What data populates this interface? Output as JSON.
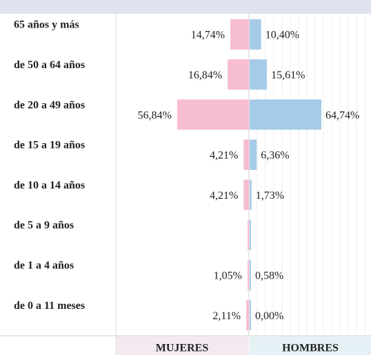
{
  "chart_data": {
    "type": "pyramid",
    "categories": [
      "65 años y más",
      "de 50 a 64 años",
      "de 20 a 49 años",
      "de 15 a 19 años",
      "de 10 a 14 años",
      "de 5 a 9 años",
      "de 1 a 4 años",
      "de 0 a 11 meses"
    ],
    "series": [
      {
        "name": "MUJERES",
        "color": "#f7bdd1",
        "values": [
          14.74,
          16.84,
          56.84,
          4.21,
          4.21,
          0,
          1.05,
          2.11
        ],
        "value_labels": [
          "14,74%",
          "16,84%",
          "56,84%",
          "4,21%",
          "4,21%",
          null,
          "1,05%",
          "2,11%"
        ]
      },
      {
        "name": "HOMBRES",
        "color": "#a5cbe8",
        "values": [
          10.4,
          15.61,
          64.74,
          6.36,
          1.73,
          0,
          0.58,
          0
        ],
        "value_labels": [
          "10,40%",
          "15,61%",
          "64,74%",
          "6,36%",
          "1,73%",
          null,
          "0,58%",
          "0,00%"
        ]
      }
    ]
  }
}
